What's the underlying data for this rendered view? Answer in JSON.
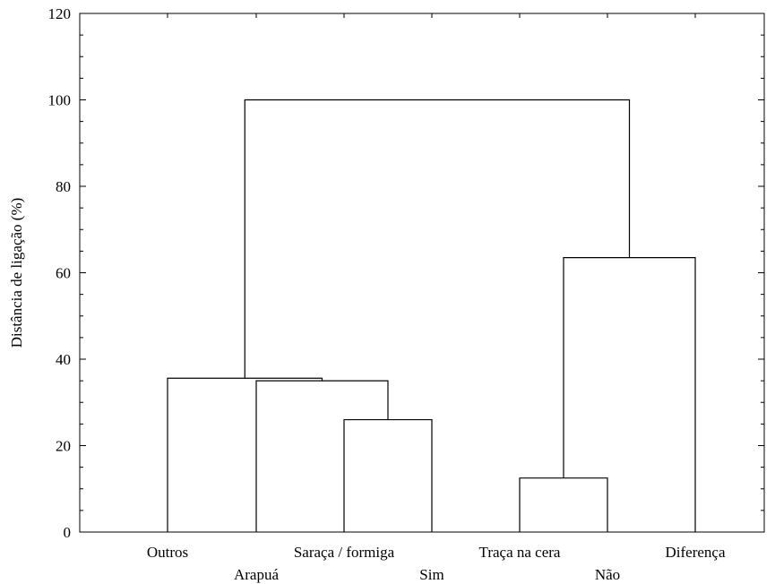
{
  "chart_data": {
    "type": "dendrogram",
    "title": "",
    "xlabel": "",
    "ylabel": "Distância de ligação (%)",
    "ylim": [
      0,
      120
    ],
    "yticks": [
      0,
      20,
      40,
      60,
      80,
      100,
      120
    ],
    "leaves": [
      "Outros",
      "Arapuá",
      "Saraça / formiga",
      "Sim",
      "Traça na cera",
      "Não",
      "Diferença"
    ],
    "merges": [
      {
        "left": "Traça na cera",
        "right": "Não",
        "height": 12.5
      },
      {
        "left": "Saraça / formiga",
        "right": "Sim",
        "height": 26
      },
      {
        "left": "Arapuá",
        "right": "Saraça / formiga + Sim",
        "height": 35
      },
      {
        "left": "Outros",
        "right": "Arapuá + Saraça / formiga + Sim",
        "height": 35.6
      },
      {
        "left": "Traça na cera + Não",
        "right": "Diferença",
        "height": 63.5
      },
      {
        "left": "Outros + Arapuá + Saraça / formiga + Sim",
        "right": "Traça na cera + Não + Diferença",
        "height": 100
      }
    ],
    "grid": false,
    "legend": "none"
  }
}
